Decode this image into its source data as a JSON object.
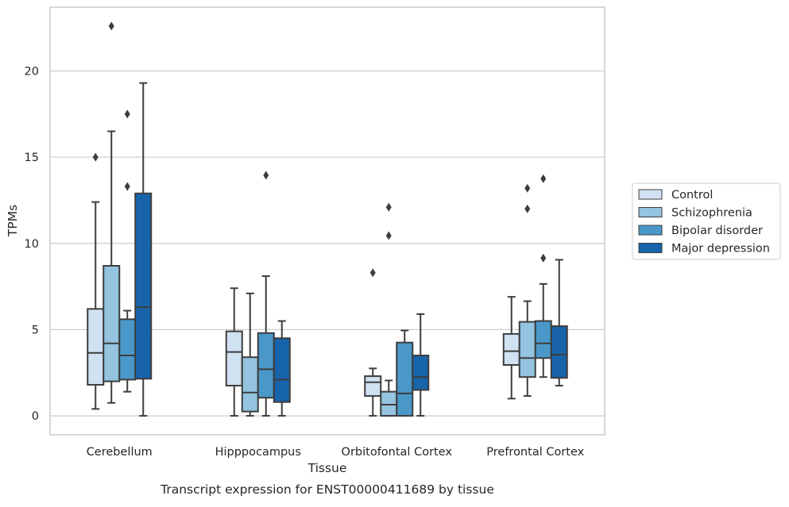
{
  "chart_data": {
    "type": "box",
    "caption": "Transcript expression for ENST00000411689 by tissue",
    "xlabel": "Tissue",
    "ylabel": "TPMs",
    "ylim": [
      -1.1,
      23.7
    ],
    "yticks": [
      0,
      5,
      10,
      15,
      20
    ],
    "grid": "horizontal",
    "legend_position": "right",
    "categories": [
      "Cerebellum",
      "Hipppocampus",
      "Orbitofontal Cortex",
      "Prefrontal Cortex"
    ],
    "series": [
      {
        "name": "Control",
        "color": "#d0e1f2",
        "boxes": [
          {
            "whisker_low": 0.4,
            "q1": 1.8,
            "median": 3.65,
            "q3": 6.2,
            "whisker_high": 12.4,
            "outliers": [
              15.0
            ]
          },
          {
            "whisker_low": 0.0,
            "q1": 1.75,
            "median": 3.7,
            "q3": 4.9,
            "whisker_high": 7.4,
            "outliers": []
          },
          {
            "whisker_low": 0.0,
            "q1": 1.15,
            "median": 1.95,
            "q3": 2.3,
            "whisker_high": 2.75,
            "outliers": [
              8.3
            ]
          },
          {
            "whisker_low": 1.0,
            "q1": 2.95,
            "median": 3.75,
            "q3": 4.75,
            "whisker_high": 6.9,
            "outliers": []
          }
        ]
      },
      {
        "name": "Schizophrenia",
        "color": "#94c4df",
        "boxes": [
          {
            "whisker_low": 0.75,
            "q1": 2.0,
            "median": 4.2,
            "q3": 8.7,
            "whisker_high": 16.5,
            "outliers": [
              22.6
            ]
          },
          {
            "whisker_low": 0.0,
            "q1": 0.25,
            "median": 1.35,
            "q3": 3.4,
            "whisker_high": 7.1,
            "outliers": []
          },
          {
            "whisker_low": 0.0,
            "q1": 0.0,
            "median": 0.65,
            "q3": 1.4,
            "whisker_high": 2.05,
            "outliers": [
              10.45,
              12.1
            ]
          },
          {
            "whisker_low": 1.15,
            "q1": 2.25,
            "median": 3.35,
            "q3": 5.45,
            "whisker_high": 6.65,
            "outliers": [
              12.0,
              13.2
            ]
          }
        ]
      },
      {
        "name": "Bipolar disorder",
        "color": "#4a98c9",
        "boxes": [
          {
            "whisker_low": 1.4,
            "q1": 2.1,
            "median": 3.5,
            "q3": 5.6,
            "whisker_high": 6.1,
            "outliers": [
              13.3,
              17.5
            ]
          },
          {
            "whisker_low": 0.0,
            "q1": 1.05,
            "median": 2.7,
            "q3": 4.8,
            "whisker_high": 8.1,
            "outliers": [
              13.95
            ]
          },
          {
            "whisker_low": 0.0,
            "q1": 0.0,
            "median": 1.3,
            "q3": 4.25,
            "whisker_high": 4.95,
            "outliers": []
          },
          {
            "whisker_low": 2.25,
            "q1": 3.35,
            "median": 4.2,
            "q3": 5.5,
            "whisker_high": 7.65,
            "outliers": [
              9.15,
              13.75
            ]
          }
        ]
      },
      {
        "name": "Major depression",
        "color": "#1764ab",
        "boxes": [
          {
            "whisker_low": 0.0,
            "q1": 2.15,
            "median": 6.3,
            "q3": 12.9,
            "whisker_high": 19.3,
            "outliers": []
          },
          {
            "whisker_low": 0.0,
            "q1": 0.8,
            "median": 2.1,
            "q3": 4.5,
            "whisker_high": 5.5,
            "outliers": []
          },
          {
            "whisker_low": 0.0,
            "q1": 1.5,
            "median": 2.25,
            "q3": 3.5,
            "whisker_high": 5.9,
            "outliers": []
          },
          {
            "whisker_low": 1.75,
            "q1": 2.2,
            "median": 3.55,
            "q3": 5.2,
            "whisker_high": 9.05,
            "outliers": []
          }
        ]
      }
    ]
  }
}
